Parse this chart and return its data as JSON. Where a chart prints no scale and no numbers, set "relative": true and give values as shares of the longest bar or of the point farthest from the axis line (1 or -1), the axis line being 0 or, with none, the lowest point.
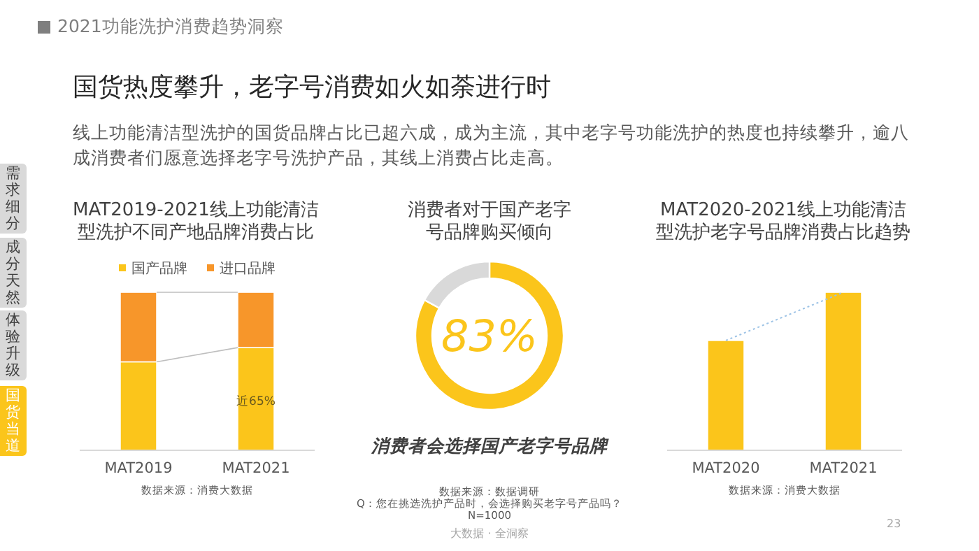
{
  "chart_data": [
    {
      "type": "other",
      "title": "国货热度攀升，老字号消费如火如荼进行时",
      "subtitle": "线上功能清洁型洗护的国货品牌占比已超六成，成为主流，其中老字号功能洗护的热度也持续攀升，逾八成消费者们愿意选择老字号洗护产品，其线上消费占比走高。",
      "annotations": [
        "2021功能洗护消费趋势洞察",
        "需求细分",
        "成分天然",
        "体验升级",
        "国货当道",
        "23",
        "大数据 · 全洞察"
      ]
    },
    {
      "type": "bar",
      "stacked": true,
      "ylim": [
        0,
        100
      ],
      "legend": "top",
      "title": "MAT2019-2021线上功能清洁型洗护不同产地品牌消费占比",
      "categories": [
        "MAT2019",
        "MAT2021"
      ],
      "series": [
        {
          "name": "国产品牌",
          "color": "#fbc51b",
          "values": [
            56,
            65
          ],
          "value_labels": [
            null,
            "近65%"
          ]
        },
        {
          "name": "进口品牌",
          "color": "#f7962a",
          "values": [
            44,
            35
          ]
        }
      ],
      "annotations": [
        "数据来源：消费大数据"
      ]
    },
    {
      "type": "donut",
      "title": "消费者对于国产老字号品牌购买倾向",
      "categories": [
        "消费者会选择国产老字号品牌",
        null
      ],
      "values": [
        83,
        17
      ],
      "colors": [
        "#fbc51b",
        "#d9d9d9"
      ],
      "value_labels": [
        "83%",
        null
      ],
      "annotations": [
        "数据来源：数据调研",
        "Q：您在挑选洗护产品时，会选择购买老字号产品吗？",
        "N=1000"
      ]
    },
    {
      "type": "bar",
      "relative": true,
      "title": "MAT2020-2021线上功能清洁型洗护老字号品牌消费占比趋势",
      "categories": [
        "MAT2020",
        "MAT2021"
      ],
      "series": [
        {
          "color": "#fbc51b",
          "values": [
            0.695,
            1
          ]
        },
        {
          "type": "line",
          "line_style": "dotted",
          "color": "#9dc3e6",
          "values": [
            0.695,
            1
          ]
        }
      ],
      "annotations": [
        "数据来源：消费大数据"
      ]
    }
  ]
}
